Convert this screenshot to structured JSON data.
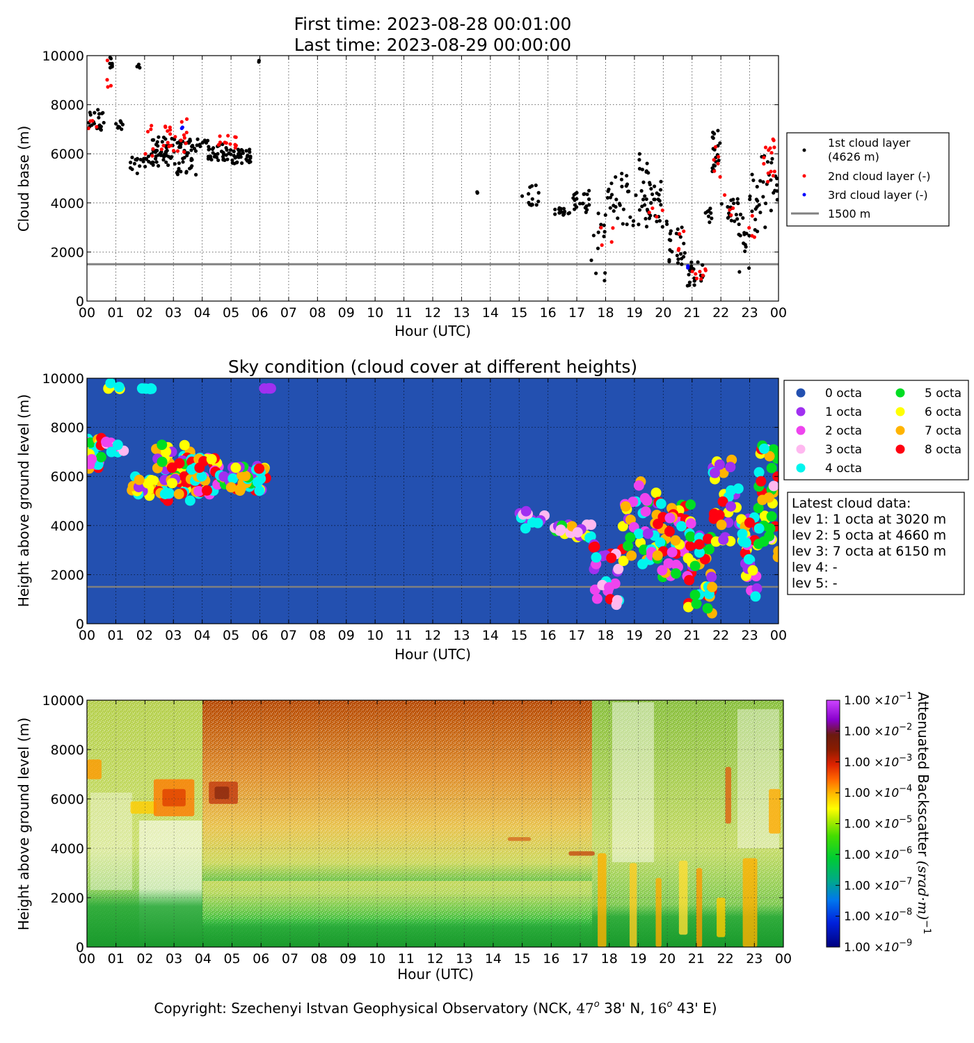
{
  "header": {
    "first_time": "First time: 2023-08-28 00:01:00",
    "last_time": "Last time: 2023-08-29 00:00:00"
  },
  "footer": {
    "copyright_prefix": "Copyright: Szechenyi Istvan Geophysical Observatory (NCK, ",
    "lat_deg": "47",
    "lat_rest": " 38' N, ",
    "lon_deg": "16",
    "lon_rest": " 43' E)",
    "degree_symbol": "o"
  },
  "chart_data": [
    {
      "type": "scatter",
      "id": "cloud-base",
      "title": "",
      "xlabel": "Hour (UTC)",
      "ylabel": "Cloud base (m)",
      "xlim": [
        0,
        24
      ],
      "ylim": [
        0,
        10000
      ],
      "x_tick_labels": [
        "00",
        "01",
        "02",
        "03",
        "04",
        "05",
        "06",
        "07",
        "08",
        "09",
        "10",
        "11",
        "12",
        "13",
        "14",
        "15",
        "16",
        "17",
        "18",
        "19",
        "20",
        "21",
        "22",
        "23",
        "00"
      ],
      "y_ticks": [
        0,
        2000,
        4000,
        6000,
        8000,
        10000
      ],
      "grid": true,
      "reference_line": {
        "y": 1500,
        "color": "#808080"
      },
      "legend": {
        "placement": "right",
        "entries": [
          {
            "label": "1st cloud layer",
            "sublabel": "(4626 m)",
            "color": "#000000"
          },
          {
            "label": "2nd cloud layer (-)",
            "color": "#ff0000"
          },
          {
            "label": "3rd cloud layer (-)",
            "color": "#0000ff"
          },
          {
            "label": "1500 m",
            "color": "#808080",
            "kind": "line"
          }
        ]
      },
      "series": [
        {
          "name": "1st cloud layer",
          "color": "#000000",
          "clusters": [
            {
              "x": [
                0.0,
                0.6
              ],
              "y": [
                6800,
                7800
              ],
              "n": 22
            },
            {
              "x": [
                0.7,
                0.95
              ],
              "y": [
                9500,
                9950
              ],
              "n": 8
            },
            {
              "x": [
                1.0,
                1.3
              ],
              "y": [
                7000,
                7400
              ],
              "n": 8
            },
            {
              "x": [
                1.7,
                1.9
              ],
              "y": [
                9450,
                9650
              ],
              "n": 4
            },
            {
              "x": [
                1.5,
                2.3
              ],
              "y": [
                5200,
                5900
              ],
              "n": 20
            },
            {
              "x": [
                2.2,
                3.0
              ],
              "y": [
                5500,
                6700
              ],
              "n": 45
            },
            {
              "x": [
                3.0,
                3.8
              ],
              "y": [
                5100,
                6600
              ],
              "n": 45
            },
            {
              "x": [
                3.8,
                4.2
              ],
              "y": [
                6300,
                6600
              ],
              "n": 10
            },
            {
              "x": [
                4.2,
                5.0
              ],
              "y": [
                5700,
                6400
              ],
              "n": 35
            },
            {
              "x": [
                5.0,
                5.7
              ],
              "y": [
                5600,
                6200
              ],
              "n": 35
            },
            {
              "x": [
                5.75,
                6.05
              ],
              "y": [
                9600,
                9900
              ],
              "n": 2
            },
            {
              "x": [
                13.4,
                13.6
              ],
              "y": [
                4400,
                4450
              ],
              "n": 3
            },
            {
              "x": [
                15.1,
                15.7
              ],
              "y": [
                3900,
                4900
              ],
              "n": 14
            },
            {
              "x": [
                16.2,
                16.8
              ],
              "y": [
                3500,
                3800
              ],
              "n": 14
            },
            {
              "x": [
                16.8,
                17.5
              ],
              "y": [
                3600,
                4500
              ],
              "n": 22
            },
            {
              "x": [
                17.5,
                18.0
              ],
              "y": [
                800,
                3600
              ],
              "n": 14
            },
            {
              "x": [
                18.0,
                18.8
              ],
              "y": [
                3000,
                5300
              ],
              "n": 26
            },
            {
              "x": [
                18.8,
                19.5
              ],
              "y": [
                3000,
                6100
              ],
              "n": 26
            },
            {
              "x": [
                19.5,
                20.2
              ],
              "y": [
                2900,
                5000
              ],
              "n": 26
            },
            {
              "x": [
                20.2,
                20.8
              ],
              "y": [
                1500,
                3200
              ],
              "n": 22
            },
            {
              "x": [
                20.8,
                21.4
              ],
              "y": [
                600,
                1700
              ],
              "n": 22
            },
            {
              "x": [
                21.4,
                21.7
              ],
              "y": [
                3200,
                3800
              ],
              "n": 8
            },
            {
              "x": [
                21.7,
                22.0
              ],
              "y": [
                5200,
                7100
              ],
              "n": 18
            },
            {
              "x": [
                22.0,
                22.6
              ],
              "y": [
                3200,
                4200
              ],
              "n": 18
            },
            {
              "x": [
                22.6,
                23.0
              ],
              "y": [
                1100,
                3600
              ],
              "n": 16
            },
            {
              "x": [
                23.0,
                23.4
              ],
              "y": [
                2700,
                5300
              ],
              "n": 16
            },
            {
              "x": [
                23.4,
                24.0
              ],
              "y": [
                3000,
                6400
              ],
              "n": 20
            }
          ]
        },
        {
          "name": "2nd cloud layer (-)",
          "color": "#ff0000",
          "clusters": [
            {
              "x": [
                0.0,
                0.5
              ],
              "y": [
                7000,
                7400
              ],
              "n": 4
            },
            {
              "x": [
                0.7,
                1.0
              ],
              "y": [
                8000,
                9950
              ],
              "n": 4
            },
            {
              "x": [
                2.0,
                2.4
              ],
              "y": [
                5800,
                7200
              ],
              "n": 6
            },
            {
              "x": [
                2.4,
                3.5
              ],
              "y": [
                6000,
                7500
              ],
              "n": 22
            },
            {
              "x": [
                4.5,
                5.2
              ],
              "y": [
                6200,
                6800
              ],
              "n": 12
            },
            {
              "x": [
                17.8,
                18.3
              ],
              "y": [
                1200,
                4600
              ],
              "n": 4
            },
            {
              "x": [
                19.5,
                20.0
              ],
              "y": [
                3400,
                3800
              ],
              "n": 4
            },
            {
              "x": [
                20.5,
                21.0
              ],
              "y": [
                2000,
                3100
              ],
              "n": 4
            },
            {
              "x": [
                21.0,
                21.5
              ],
              "y": [
                900,
                1400
              ],
              "n": 8
            },
            {
              "x": [
                21.7,
                22.1
              ],
              "y": [
                4900,
                6400
              ],
              "n": 6
            },
            {
              "x": [
                22.1,
                22.5
              ],
              "y": [
                3500,
                4400
              ],
              "n": 4
            },
            {
              "x": [
                22.9,
                23.2
              ],
              "y": [
                2600,
                3500
              ],
              "n": 4
            },
            {
              "x": [
                23.4,
                23.9
              ],
              "y": [
                4800,
                6700
              ],
              "n": 14
            }
          ]
        },
        {
          "name": "3rd cloud layer (-)",
          "color": "#0000ff",
          "clusters": [
            {
              "x": [
                2.9,
                3.4
              ],
              "y": [
                7000,
                7200
              ],
              "n": 2
            },
            {
              "x": [
                20.85,
                20.95
              ],
              "y": [
                1350,
                1450
              ],
              "n": 2
            }
          ]
        }
      ]
    },
    {
      "type": "scatter",
      "id": "sky-condition",
      "title": "Sky condition (cloud cover at different heights)",
      "xlabel": "Hour (UTC)",
      "ylabel": "Height above ground level (m)",
      "xlim": [
        0,
        24
      ],
      "ylim": [
        0,
        10000
      ],
      "x_tick_labels": [
        "00",
        "01",
        "02",
        "03",
        "04",
        "05",
        "06",
        "07",
        "08",
        "09",
        "10",
        "11",
        "12",
        "13",
        "14",
        "15",
        "16",
        "17",
        "18",
        "19",
        "20",
        "21",
        "22",
        "23",
        "00"
      ],
      "y_ticks": [
        0,
        2000,
        4000,
        6000,
        8000,
        10000
      ],
      "background": "#2350b0",
      "reference_line": {
        "y": 1500,
        "color": "#808080"
      },
      "legend": {
        "placement": "right",
        "entries": [
          {
            "label": "0 octa",
            "color": "#2350b0"
          },
          {
            "label": "1 octa",
            "color": "#a030f0"
          },
          {
            "label": "2 octa",
            "color": "#ee44ee"
          },
          {
            "label": "3 octa",
            "color": "#ffb8f0"
          },
          {
            "label": "4 octa",
            "color": "#00f5ee"
          },
          {
            "label": "5 octa",
            "color": "#00dd22"
          },
          {
            "label": "6 octa",
            "color": "#ffff00"
          },
          {
            "label": "7 octa",
            "color": "#ffb400"
          },
          {
            "label": "8 octa",
            "color": "#ff0010"
          }
        ]
      },
      "latest_cloud_data": {
        "title": "Latest cloud data:",
        "lines": [
          "lev 1: 1 octa at 3020 m",
          "lev 2: 5 octa at 4660 m",
          "lev 3: 7 octa at 6150 m",
          "lev 4: -",
          "lev 5: -"
        ]
      },
      "clusters": [
        {
          "x": [
            0.0,
            0.5
          ],
          "y": [
            6300,
            7600
          ],
          "octa_mix": [
            4,
            5,
            6,
            7,
            8,
            2
          ],
          "n": 26
        },
        {
          "x": [
            0.6,
            1.3
          ],
          "y": [
            6900,
            7700
          ],
          "octa_mix": [
            3,
            2,
            4
          ],
          "n": 10
        },
        {
          "x": [
            0.7,
            1.3
          ],
          "y": [
            9550,
            9800
          ],
          "octa_mix": [
            4,
            6
          ],
          "n": 6
        },
        {
          "x": [
            1.9,
            2.3
          ],
          "y": [
            9550,
            9600
          ],
          "octa_mix": [
            4
          ],
          "n": 5
        },
        {
          "x": [
            6.1,
            6.5
          ],
          "y": [
            9550,
            9600
          ],
          "octa_mix": [
            1
          ],
          "n": 5
        },
        {
          "x": [
            1.5,
            2.4
          ],
          "y": [
            5200,
            6000
          ],
          "octa_mix": [
            1,
            3,
            4,
            6,
            7
          ],
          "n": 18
        },
        {
          "x": [
            2.4,
            3.6
          ],
          "y": [
            5000,
            7300
          ],
          "octa_mix": [
            8,
            7,
            6,
            5,
            4,
            1
          ],
          "n": 55
        },
        {
          "x": [
            3.6,
            4.6
          ],
          "y": [
            5200,
            6800
          ],
          "octa_mix": [
            8,
            7,
            6,
            4,
            2
          ],
          "n": 40
        },
        {
          "x": [
            4.6,
            6.3
          ],
          "y": [
            5400,
            6500
          ],
          "octa_mix": [
            6,
            7,
            8,
            4,
            5,
            1
          ],
          "n": 45
        },
        {
          "x": [
            15.0,
            15.9
          ],
          "y": [
            3800,
            4600
          ],
          "octa_mix": [
            1,
            4,
            3
          ],
          "n": 14
        },
        {
          "x": [
            16.2,
            17.5
          ],
          "y": [
            3500,
            4100
          ],
          "octa_mix": [
            4,
            6,
            7,
            3,
            1,
            5
          ],
          "n": 26
        },
        {
          "x": [
            17.5,
            18.6
          ],
          "y": [
            700,
            3500
          ],
          "octa_mix": [
            1,
            2,
            8,
            4,
            3
          ],
          "n": 26
        },
        {
          "x": [
            18.6,
            19.8
          ],
          "y": [
            2400,
            5800
          ],
          "octa_mix": [
            4,
            5,
            6,
            7,
            1,
            2
          ],
          "n": 40
        },
        {
          "x": [
            19.8,
            21.0
          ],
          "y": [
            1800,
            5000
          ],
          "octa_mix": [
            8,
            7,
            6,
            4,
            5,
            2
          ],
          "n": 50
        },
        {
          "x": [
            20.8,
            21.7
          ],
          "y": [
            400,
            3600
          ],
          "octa_mix": [
            1,
            4,
            5,
            6,
            7,
            8
          ],
          "n": 40
        },
        {
          "x": [
            21.7,
            22.7
          ],
          "y": [
            3000,
            6900
          ],
          "octa_mix": [
            7,
            8,
            4,
            6,
            1
          ],
          "n": 32
        },
        {
          "x": [
            22.7,
            23.3
          ],
          "y": [
            1000,
            4400
          ],
          "octa_mix": [
            8,
            7,
            2,
            1,
            4,
            6
          ],
          "n": 34
        },
        {
          "x": [
            23.3,
            24.0
          ],
          "y": [
            2700,
            7300
          ],
          "octa_mix": [
            8,
            7,
            6,
            4,
            3,
            5
          ],
          "n": 36
        }
      ]
    },
    {
      "type": "heatmap",
      "id": "backscatter",
      "title": "",
      "xlabel": "Hour (UTC)",
      "ylabel": "Height above ground level (m)",
      "xlim": [
        0,
        24
      ],
      "ylim": [
        0,
        10000
      ],
      "x_tick_labels": [
        "00",
        "01",
        "02",
        "03",
        "04",
        "05",
        "06",
        "07",
        "08",
        "09",
        "10",
        "11",
        "12",
        "13",
        "14",
        "15",
        "16",
        "17",
        "18",
        "19",
        "20",
        "21",
        "22",
        "23",
        "00"
      ],
      "y_ticks": [
        0,
        2000,
        4000,
        6000,
        8000,
        10000
      ],
      "colorbar": {
        "label": "Attenuated Backscatter",
        "units": "(srad·m)",
        "units_exponent": "−1",
        "scale": "log",
        "range": [
          1e-09,
          0.1
        ],
        "tick_mantissa": "1.00",
        "tick_exponents": [
          "−9",
          "−8",
          "−7",
          "−6",
          "−5",
          "−4",
          "−3",
          "−2",
          "−1"
        ],
        "colors": [
          "#00007f",
          "#0033ff",
          "#0099ff",
          "#00cc66",
          "#00dd00",
          "#66ee00",
          "#ffff00",
          "#ffaa00",
          "#ff5500",
          "#cc2200",
          "#7a1f00",
          "#9900cc",
          "#dd44ff"
        ]
      }
    }
  ]
}
